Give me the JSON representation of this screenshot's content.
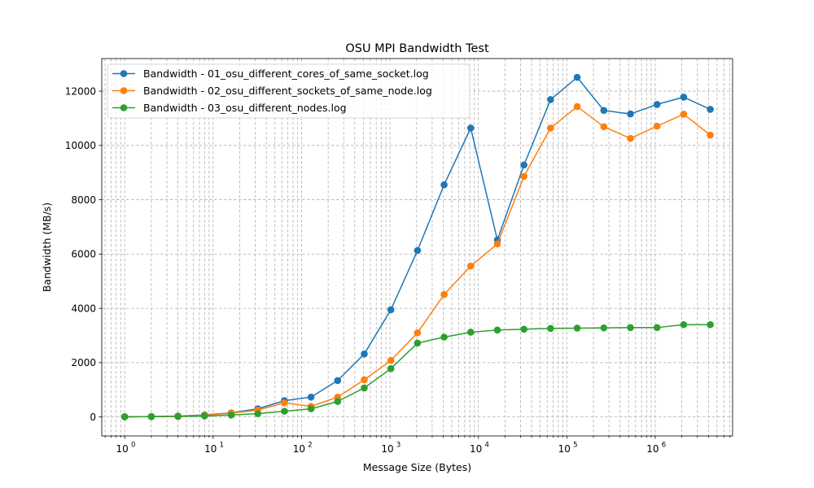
{
  "chart_data": {
    "type": "line",
    "title": "OSU MPI Bandwidth Test",
    "xlabel": "Message Size (Bytes)",
    "ylabel": "Bandwidth (MB/s)",
    "xscale": "log",
    "xlim": [
      0.55,
      7500000
    ],
    "ylim": [
      -700,
      13200
    ],
    "grid": true,
    "grid_style": "dashed",
    "legend_position": "top-left",
    "xticks": [
      {
        "value": 1,
        "label": "10",
        "exp": "0"
      },
      {
        "value": 10,
        "label": "10",
        "exp": "1"
      },
      {
        "value": 100,
        "label": "10",
        "exp": "2"
      },
      {
        "value": 1000,
        "label": "10",
        "exp": "3"
      },
      {
        "value": 10000,
        "label": "10",
        "exp": "4"
      },
      {
        "value": 100000,
        "label": "10",
        "exp": "5"
      },
      {
        "value": 1000000,
        "label": "10",
        "exp": "6"
      }
    ],
    "yticks": [
      0,
      2000,
      4000,
      6000,
      8000,
      10000,
      12000
    ],
    "x": [
      1,
      2,
      4,
      8,
      16,
      32,
      64,
      128,
      256,
      512,
      1024,
      2048,
      4096,
      8192,
      16384,
      32768,
      65536,
      131072,
      262144,
      524288,
      1048576,
      2097152,
      4194304
    ],
    "series": [
      {
        "name": "Bandwidth - 01_osu_different_cores_of_same_socket.log",
        "color": "#1f77b4",
        "values": [
          5,
          15,
          35,
          75,
          150,
          300,
          600,
          730,
          1340,
          2320,
          3950,
          6130,
          8550,
          10640,
          6520,
          9280,
          11690,
          12510,
          11290,
          11160,
          11510,
          11780,
          11330
        ]
      },
      {
        "name": "Bandwidth - 02_osu_different_sockets_of_same_node.log",
        "color": "#ff7f0e",
        "values": [
          5,
          15,
          30,
          60,
          140,
          250,
          520,
          390,
          730,
          1370,
          2080,
          3100,
          4510,
          5560,
          6370,
          8860,
          10640,
          11430,
          10690,
          10260,
          10710,
          11150,
          10380
        ]
      },
      {
        "name": "Bandwidth - 03_osu_different_nodes.log",
        "color": "#2ca02c",
        "values": [
          5,
          10,
          15,
          35,
          70,
          120,
          210,
          300,
          570,
          1070,
          1780,
          2720,
          2940,
          3120,
          3200,
          3230,
          3260,
          3270,
          3280,
          3290,
          3290,
          3400,
          3400
        ]
      }
    ]
  }
}
